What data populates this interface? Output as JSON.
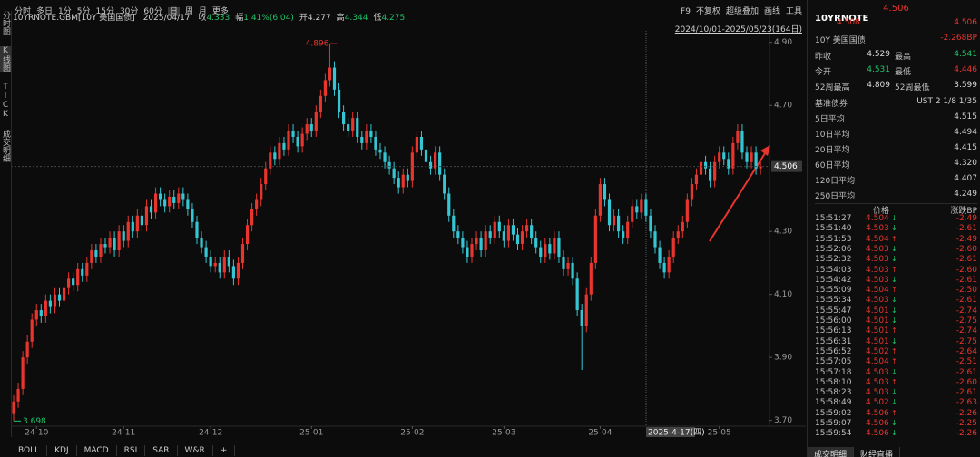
{
  "toolbar": {
    "periods": [
      "分时",
      "多日",
      "1分",
      "5分",
      "15分",
      "30分",
      "60分",
      "日",
      "周",
      "月",
      "更多"
    ],
    "tools": [
      "F9",
      "不复权",
      "超级叠加",
      "画线",
      "工具"
    ]
  },
  "sidebar": [
    "分时图",
    "K线图",
    "TICK",
    "成交明细"
  ],
  "info": {
    "symbol": "10YRNOTE.GBM[10Y 美国国债]",
    "date": "2025/04/17",
    "items": [
      {
        "label": "收",
        "value": "4.333"
      },
      {
        "label": "幅",
        "value": "1.41%(6.04)"
      },
      {
        "label": "开",
        "value": "4.277"
      },
      {
        "label": "高",
        "value": "4.344"
      },
      {
        "label": "低",
        "value": "4.275"
      }
    ]
  },
  "range": "2024/10/01-2025/05/23(164日)",
  "cursor_label": "2025-4-17(四)",
  "chart_data": {
    "type": "candlestick",
    "up_color": "#e8352e",
    "down_color": "#36c6d3",
    "open": [
      3.72,
      3.76,
      3.8,
      3.9,
      3.95,
      4.02,
      4.05,
      4.03,
      4.08,
      4.06,
      4.1,
      4.08,
      4.12,
      4.15,
      4.13,
      4.18,
      4.16,
      4.2,
      4.24,
      4.22,
      4.26,
      4.25,
      4.28,
      4.24,
      4.3,
      4.27,
      4.33,
      4.3,
      4.35,
      4.32,
      4.38,
      4.36,
      4.42,
      4.4,
      4.38,
      4.41,
      4.39,
      4.42,
      4.4,
      4.37,
      4.33,
      4.28,
      4.25,
      4.22,
      4.19,
      4.2,
      4.17,
      4.22,
      4.19,
      4.15,
      4.2,
      4.26,
      4.32,
      4.37,
      4.4,
      4.45,
      4.5,
      4.55,
      4.53,
      4.58,
      4.56,
      4.62,
      4.6,
      4.57,
      4.61,
      4.64,
      4.62,
      4.68,
      4.73,
      4.78,
      4.82,
      4.75,
      4.68,
      4.64,
      4.62,
      4.66,
      4.6,
      4.58,
      4.62,
      4.6,
      4.56,
      4.55,
      4.52,
      4.5,
      4.47,
      4.44,
      4.48,
      4.46,
      4.55,
      4.6,
      4.56,
      4.52,
      4.5,
      4.55,
      4.48,
      4.42,
      4.35,
      4.3,
      4.28,
      4.25,
      4.22,
      4.26,
      4.28,
      4.24,
      4.3,
      4.28,
      4.33,
      4.3,
      4.27,
      4.32,
      4.29,
      4.26,
      4.3,
      4.32,
      4.28,
      4.25,
      4.22,
      4.26,
      4.23,
      4.28,
      4.22,
      4.18,
      4.2,
      4.15,
      4.05,
      4.0,
      4.1,
      4.2,
      4.35,
      4.45,
      4.4,
      4.32,
      4.35,
      4.3,
      4.28,
      4.33,
      4.38,
      4.36,
      4.4,
      4.35,
      4.3,
      4.25,
      4.2,
      4.17,
      4.22,
      4.28,
      4.3,
      4.33,
      4.4,
      4.45,
      4.48,
      4.52,
      4.5,
      4.46,
      4.52,
      4.55,
      4.53,
      4.5,
      4.58,
      4.62,
      4.55,
      4.52,
      4.55,
      4.5
    ],
    "high": [
      3.78,
      3.82,
      3.92,
      3.97,
      4.04,
      4.07,
      4.07,
      4.1,
      4.1,
      4.12,
      4.12,
      4.14,
      4.17,
      4.17,
      4.2,
      4.2,
      4.22,
      4.26,
      4.26,
      4.28,
      4.28,
      4.3,
      4.3,
      4.32,
      4.32,
      4.35,
      4.35,
      4.37,
      4.37,
      4.4,
      4.4,
      4.44,
      4.44,
      4.42,
      4.43,
      4.43,
      4.44,
      4.44,
      4.42,
      4.39,
      4.35,
      4.3,
      4.27,
      4.24,
      4.22,
      4.22,
      4.24,
      4.24,
      4.21,
      4.22,
      4.28,
      4.34,
      4.39,
      4.42,
      4.47,
      4.52,
      4.57,
      4.57,
      4.6,
      4.6,
      4.64,
      4.64,
      4.62,
      4.63,
      4.66,
      4.66,
      4.7,
      4.75,
      4.8,
      4.896,
      4.84,
      4.77,
      4.7,
      4.66,
      4.68,
      4.68,
      4.62,
      4.64,
      4.64,
      4.62,
      4.58,
      4.57,
      4.54,
      4.52,
      4.49,
      4.5,
      4.5,
      4.57,
      4.62,
      4.62,
      4.58,
      4.54,
      4.57,
      4.57,
      4.5,
      4.44,
      4.37,
      4.32,
      4.3,
      4.27,
      4.28,
      4.3,
      4.3,
      4.32,
      4.32,
      4.35,
      4.35,
      4.32,
      4.34,
      4.34,
      4.31,
      4.32,
      4.34,
      4.34,
      4.3,
      4.27,
      4.28,
      4.28,
      4.3,
      4.3,
      4.24,
      4.22,
      4.22,
      4.17,
      4.07,
      4.12,
      4.22,
      4.37,
      4.47,
      4.47,
      4.42,
      4.37,
      4.37,
      4.32,
      4.35,
      4.4,
      4.4,
      4.42,
      4.42,
      4.37,
      4.32,
      4.27,
      4.22,
      4.24,
      4.3,
      4.32,
      4.35,
      4.42,
      4.47,
      4.5,
      4.54,
      4.54,
      4.52,
      4.54,
      4.57,
      4.57,
      4.55,
      4.6,
      4.64,
      4.64,
      4.57,
      4.57,
      4.57,
      4.53
    ],
    "low": [
      3.698,
      3.74,
      3.78,
      3.88,
      3.93,
      4.0,
      4.01,
      4.01,
      4.04,
      4.04,
      4.06,
      4.06,
      4.1,
      4.11,
      4.11,
      4.14,
      4.14,
      4.18,
      4.2,
      4.2,
      4.23,
      4.23,
      4.22,
      4.22,
      4.25,
      4.25,
      4.28,
      4.28,
      4.3,
      4.3,
      4.34,
      4.34,
      4.38,
      4.36,
      4.36,
      4.37,
      4.37,
      4.38,
      4.35,
      4.31,
      4.26,
      4.23,
      4.2,
      4.17,
      4.17,
      4.15,
      4.15,
      4.17,
      4.13,
      4.13,
      4.18,
      4.24,
      4.3,
      4.35,
      4.38,
      4.43,
      4.48,
      4.51,
      4.51,
      4.54,
      4.54,
      4.58,
      4.55,
      4.55,
      4.59,
      4.6,
      4.6,
      4.66,
      4.71,
      4.76,
      4.73,
      4.66,
      4.62,
      4.6,
      4.6,
      4.58,
      4.56,
      4.56,
      4.58,
      4.54,
      4.53,
      4.5,
      4.48,
      4.45,
      4.42,
      4.42,
      4.44,
      4.44,
      4.53,
      4.54,
      4.5,
      4.48,
      4.48,
      4.46,
      4.4,
      4.33,
      4.28,
      4.26,
      4.23,
      4.2,
      4.2,
      4.24,
      4.22,
      4.22,
      4.26,
      4.26,
      4.28,
      4.25,
      4.25,
      4.27,
      4.24,
      4.24,
      4.28,
      4.26,
      4.23,
      4.2,
      4.2,
      4.21,
      4.21,
      4.2,
      4.16,
      4.16,
      4.13,
      4.03,
      3.86,
      3.98,
      4.08,
      4.18,
      4.33,
      4.38,
      4.3,
      4.3,
      4.28,
      4.26,
      4.26,
      4.31,
      4.34,
      4.34,
      4.33,
      4.28,
      4.23,
      4.18,
      4.15,
      4.15,
      4.2,
      4.26,
      4.28,
      4.31,
      4.38,
      4.43,
      4.46,
      4.48,
      4.44,
      4.44,
      4.5,
      4.51,
      4.48,
      4.48,
      4.56,
      4.53,
      4.5,
      4.5,
      4.48,
      4.48
    ],
    "close": [
      3.76,
      3.8,
      3.9,
      3.95,
      4.02,
      4.05,
      4.03,
      4.08,
      4.06,
      4.1,
      4.08,
      4.12,
      4.15,
      4.13,
      4.18,
      4.16,
      4.2,
      4.24,
      4.22,
      4.26,
      4.25,
      4.28,
      4.24,
      4.3,
      4.27,
      4.33,
      4.3,
      4.35,
      4.32,
      4.38,
      4.36,
      4.42,
      4.4,
      4.38,
      4.41,
      4.39,
      4.42,
      4.4,
      4.37,
      4.33,
      4.28,
      4.25,
      4.22,
      4.19,
      4.2,
      4.17,
      4.22,
      4.19,
      4.15,
      4.2,
      4.26,
      4.32,
      4.37,
      4.4,
      4.45,
      4.5,
      4.55,
      4.53,
      4.58,
      4.56,
      4.62,
      4.6,
      4.57,
      4.61,
      4.64,
      4.62,
      4.68,
      4.73,
      4.78,
      4.82,
      4.75,
      4.68,
      4.64,
      4.62,
      4.66,
      4.6,
      4.58,
      4.62,
      4.6,
      4.56,
      4.55,
      4.52,
      4.5,
      4.47,
      4.44,
      4.48,
      4.46,
      4.55,
      4.6,
      4.56,
      4.52,
      4.5,
      4.55,
      4.48,
      4.42,
      4.35,
      4.3,
      4.28,
      4.25,
      4.22,
      4.26,
      4.28,
      4.24,
      4.3,
      4.28,
      4.33,
      4.3,
      4.27,
      4.32,
      4.29,
      4.26,
      4.3,
      4.32,
      4.28,
      4.25,
      4.22,
      4.26,
      4.23,
      4.28,
      4.22,
      4.18,
      4.2,
      4.15,
      4.05,
      4.0,
      4.1,
      4.2,
      4.35,
      4.45,
      4.4,
      4.32,
      4.35,
      4.3,
      4.28,
      4.33,
      4.38,
      4.36,
      4.4,
      4.35,
      4.3,
      4.25,
      4.2,
      4.17,
      4.22,
      4.28,
      4.3,
      4.33,
      4.4,
      4.45,
      4.48,
      4.52,
      4.5,
      4.46,
      4.52,
      4.55,
      4.53,
      4.5,
      4.58,
      4.62,
      4.55,
      4.52,
      4.55,
      4.5,
      4.506
    ],
    "ylim": [
      3.65,
      5.0
    ],
    "yticks": [
      {
        "value": 3.7,
        "label": "3.70"
      },
      {
        "value": 3.9,
        "label": "3.90"
      },
      {
        "value": 4.1,
        "label": "4.10"
      },
      {
        "value": 4.3,
        "label": "4.30"
      },
      {
        "value": 4.7,
        "label": "4.70"
      },
      {
        "value": 4.9,
        "label": "4.90"
      }
    ],
    "xticks": [
      {
        "value": 5,
        "label": "24-10"
      },
      {
        "value": 24,
        "label": "24-11"
      },
      {
        "value": 43,
        "label": "24-12"
      },
      {
        "value": 65,
        "label": "25-01"
      },
      {
        "value": 87,
        "label": "25-02"
      },
      {
        "value": 107,
        "label": "25-03"
      },
      {
        "value": 128,
        "label": "25-04"
      },
      {
        "value": 154,
        "label": "25-05"
      }
    ],
    "high_mark": 4.896,
    "low_mark": 3.698,
    "last_price": 4.506
  },
  "indicator_tabs": [
    "BOLL",
    "KDJ",
    "MACD",
    "RSI",
    "SAR",
    "W&R",
    "+"
  ],
  "quote": {
    "symbol": "10YRNOTE",
    "last": "4.506",
    "bid": "4.508",
    "ask": "4.506",
    "name": "10Y 美国国债",
    "change": "-2.268BP",
    "stats": [
      {
        "label": "昨收",
        "value": "4.529",
        "color": "#dddddd"
      },
      {
        "label": "最高",
        "value": "4.541",
        "color": "#1fc46a"
      },
      {
        "label": "今开",
        "value": "4.531",
        "color": "#1fc46a"
      },
      {
        "label": "最低",
        "value": "4.446",
        "color": "#e8352e"
      },
      {
        "label": "52周最高",
        "value": "4.809",
        "color": "#dddddd"
      },
      {
        "label": "52周最低",
        "value": "3.599",
        "color": "#dddddd"
      }
    ],
    "benchmark": {
      "label": "基准债券",
      "value": "UST 2 1/8 1/35"
    },
    "averages": [
      {
        "label": "5日平均",
        "value": "4.515"
      },
      {
        "label": "10日平均",
        "value": "4.494"
      },
      {
        "label": "20日平均",
        "value": "4.415"
      },
      {
        "label": "60日平均",
        "value": "4.320"
      },
      {
        "label": "120日平均",
        "value": "4.407"
      },
      {
        "label": "250日平均",
        "value": "4.249"
      }
    ],
    "trade_headers": [
      "价格",
      "涨跌BP"
    ],
    "trades": [
      {
        "time": "15:51:27",
        "price": "4.504",
        "arrow": "↓",
        "arrow_color": "#1fc46a",
        "bp": "-2.49"
      },
      {
        "time": "15:51:40",
        "price": "4.503",
        "arrow": "↓",
        "arrow_color": "#1fc46a",
        "bp": "-2.61"
      },
      {
        "time": "15:51:53",
        "price": "4.504",
        "arrow": "↑",
        "arrow_color": "#e8352e",
        "bp": "-2.49"
      },
      {
        "time": "15:52:06",
        "price": "4.503",
        "arrow": "↓",
        "arrow_color": "#1fc46a",
        "bp": "-2.60"
      },
      {
        "time": "15:52:32",
        "price": "4.503",
        "arrow": "↓",
        "arrow_color": "#1fc46a",
        "bp": "-2.61"
      },
      {
        "time": "15:54:03",
        "price": "4.503",
        "arrow": "↑",
        "arrow_color": "#e8352e",
        "bp": "-2.60"
      },
      {
        "time": "15:54:42",
        "price": "4.503",
        "arrow": "↓",
        "arrow_color": "#1fc46a",
        "bp": "-2.61"
      },
      {
        "time": "15:55:09",
        "price": "4.504",
        "arrow": "↑",
        "arrow_color": "#e8352e",
        "bp": "-2.50"
      },
      {
        "time": "15:55:34",
        "price": "4.503",
        "arrow": "↓",
        "arrow_color": "#1fc46a",
        "bp": "-2.61"
      },
      {
        "time": "15:55:47",
        "price": "4.501",
        "arrow": "↓",
        "arrow_color": "#1fc46a",
        "bp": "-2.74"
      },
      {
        "time": "15:56:00",
        "price": "4.501",
        "arrow": "↓",
        "arrow_color": "#1fc46a",
        "bp": "-2.75"
      },
      {
        "time": "15:56:13",
        "price": "4.501",
        "arrow": "↑",
        "arrow_color": "#e8352e",
        "bp": "-2.74"
      },
      {
        "time": "15:56:31",
        "price": "4.501",
        "arrow": "↓",
        "arrow_color": "#1fc46a",
        "bp": "-2.75"
      },
      {
        "time": "15:56:52",
        "price": "4.502",
        "arrow": "↑",
        "arrow_color": "#e8352e",
        "bp": "-2.64"
      },
      {
        "time": "15:57:05",
        "price": "4.504",
        "arrow": "↑",
        "arrow_color": "#e8352e",
        "bp": "-2.51"
      },
      {
        "time": "15:57:18",
        "price": "4.503",
        "arrow": "↓",
        "arrow_color": "#1fc46a",
        "bp": "-2.61"
      },
      {
        "time": "15:58:10",
        "price": "4.503",
        "arrow": "↑",
        "arrow_color": "#e8352e",
        "bp": "-2.60"
      },
      {
        "time": "15:58:23",
        "price": "4.503",
        "arrow": "↓",
        "arrow_color": "#1fc46a",
        "bp": "-2.61"
      },
      {
        "time": "15:58:49",
        "price": "4.502",
        "arrow": "↓",
        "arrow_color": "#1fc46a",
        "bp": "-2.63"
      },
      {
        "time": "15:59:02",
        "price": "4.506",
        "arrow": "↑",
        "arrow_color": "#e8352e",
        "bp": "-2.26"
      },
      {
        "time": "15:59:07",
        "price": "4.506",
        "arrow": "↓",
        "arrow_color": "#1fc46a",
        "bp": "-2.25"
      },
      {
        "time": "15:59:54",
        "price": "4.506",
        "arrow": "↓",
        "arrow_color": "#1fc46a",
        "bp": "-2.26"
      }
    ],
    "bottom_tabs": [
      "成交明细",
      "财经直播"
    ]
  }
}
